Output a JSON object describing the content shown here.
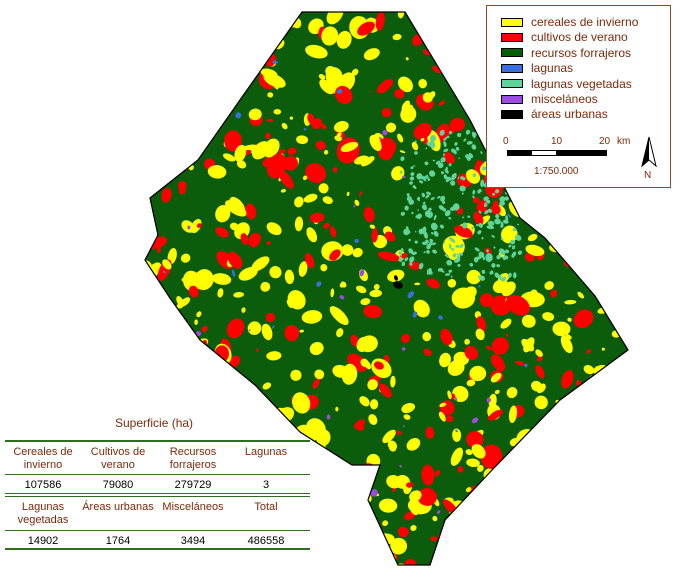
{
  "legend": {
    "items": [
      {
        "label": "cereales de invierno",
        "color": "#ffff00"
      },
      {
        "label": "cultivos de verano",
        "color": "#ff0000"
      },
      {
        "label": "recursos forrajeros",
        "color": "#006000"
      },
      {
        "label": "lagunas",
        "color": "#3a6fe0"
      },
      {
        "label": "lagunas vegetadas",
        "color": "#5fd39a"
      },
      {
        "label": "misceláneos",
        "color": "#9b4de0"
      },
      {
        "label": "áreas urbanas",
        "color": "#000000"
      }
    ],
    "scale_ticks": [
      "0",
      "10",
      "20"
    ],
    "scale_unit": "km",
    "scale_ratio": "1:750.000",
    "north_label": "N"
  },
  "table": {
    "title": "Superficie (ha)",
    "row1_headers": [
      "Cereales de invierno",
      "Cultivos de verano",
      "Recursos forrajeros",
      "Lagunas"
    ],
    "row1_values": [
      "107586",
      "79080",
      "279729",
      "3"
    ],
    "row2_headers": [
      "Lagunas vegetadas",
      "Áreas urbanas",
      "Misceláneos",
      "Total"
    ],
    "row2_values": [
      "14902",
      "1764",
      "3494",
      "486558"
    ]
  }
}
